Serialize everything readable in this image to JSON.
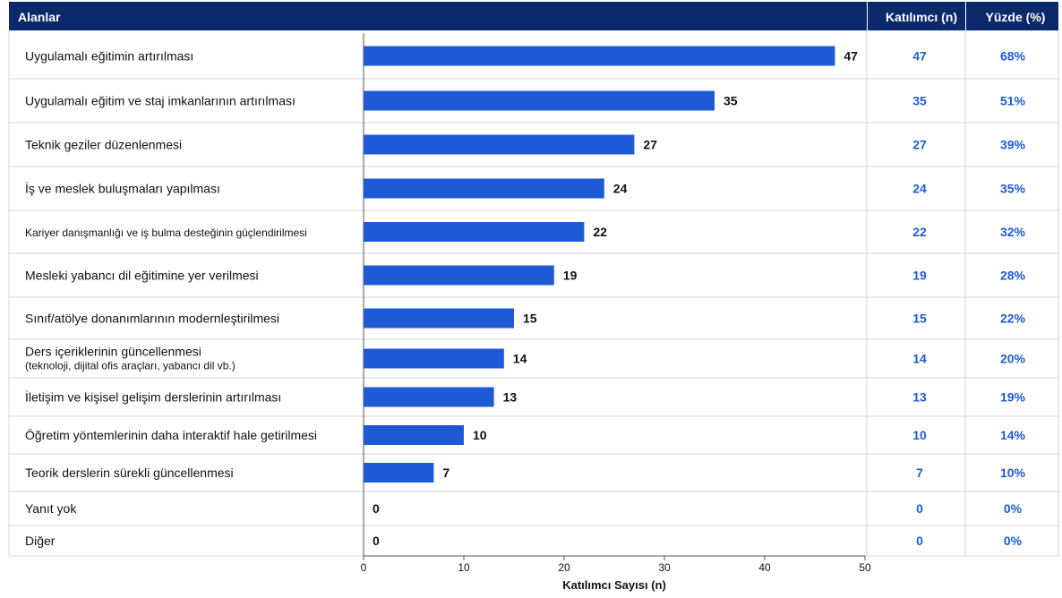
{
  "header": {
    "areas": "Alanlar",
    "count": "Katılımcı (n)",
    "percent": "Yüzde (%)"
  },
  "chart_data": {
    "type": "bar",
    "orientation": "horizontal",
    "categories": [
      [
        "Uygulamalı eğitimin artırılması"
      ],
      [
        "Uygulamalı eğitim ve staj imkanlarının artırılması"
      ],
      [
        "Teknik geziler düzenlenmesi"
      ],
      [
        "İş ve meslek buluşmaları yapılması"
      ],
      [
        "Kariyer danışmanlığı ve iş bulma desteğinin güçlendirilmesi"
      ],
      [
        "Mesleki yabancı dil eğitimine yer verilmesi"
      ],
      [
        "Sınıf/atölye donanımlarının modernleştirilmesi"
      ],
      [
        "Ders içeriklerinin güncellenmesi",
        "(teknoloji, dijital ofis araçları, yabancı dil vb.)"
      ],
      [
        "İletişim ve kişisel gelişim derslerinin artırılması"
      ],
      [
        "Öğretim yöntemlerinin daha interaktif hale getirilmesi"
      ],
      [
        "Teorik derslerin sürekli güncellenmesi"
      ],
      [
        "Yanıt yok"
      ],
      [
        "Diğer"
      ]
    ],
    "values": [
      47,
      35,
      27,
      24,
      22,
      19,
      15,
      14,
      13,
      10,
      7,
      0,
      0
    ],
    "percent_labels": [
      "68%",
      "51%",
      "39%",
      "35%",
      "32%",
      "28%",
      "22%",
      "20%",
      "19%",
      "14%",
      "10%",
      "0%",
      "0%"
    ],
    "xlabel": "Katılımcı Sayısı (n)",
    "xlim": [
      0,
      50
    ],
    "xticks": [
      0,
      10,
      20,
      30,
      40,
      50
    ],
    "colors": {
      "bar": "#1f5ad6",
      "header": "#0b2a6b",
      "table_text": "#1f5ad6"
    }
  }
}
